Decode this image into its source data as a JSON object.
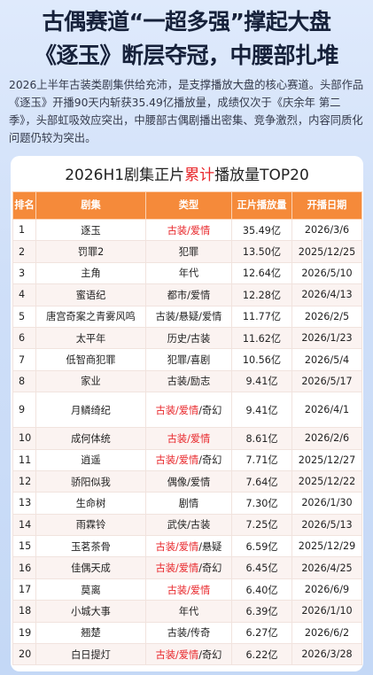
{
  "header": {
    "title_lines": [
      "古偶赛道“一超多强”撑起大盘",
      "《逐玉》断层夺冠，中腰部扎堆"
    ],
    "paragraph": "2026上半年古装类剧集供给充沛，是支撑播放大盘的核心赛道。头部作品《逐玉》开播90天内斩获35.49亿播放量，成绩仅次于《庆余年 第二季》，头部虹吸效应突出，中腰部古偶剧播出密集、竞争激烈，内容同质化问题仍较为突出。"
  },
  "table": {
    "title_parts": [
      {
        "text": "2026H1剧集正片"
      },
      {
        "text": "累计",
        "color": "#e8262a"
      },
      {
        "text": "播放量TOP20"
      }
    ],
    "columns": [
      "排名",
      "剧集",
      "类型",
      "正片播放量",
      "开播日期"
    ],
    "rows": [
      {
        "rank": 1,
        "name": "逐玉",
        "genre_parts": [
          {
            "text": "古装/爱情",
            "color": "#e8262a"
          }
        ],
        "plays": "35.49亿",
        "date": "2026/3/6"
      },
      {
        "rank": 2,
        "name": "罚罪2",
        "genre_parts": [
          {
            "text": "犯罪"
          }
        ],
        "plays": "13.50亿",
        "date": "2025/12/25"
      },
      {
        "rank": 3,
        "name": "主角",
        "genre_parts": [
          {
            "text": "年代"
          }
        ],
        "plays": "12.64亿",
        "date": "2026/5/10"
      },
      {
        "rank": 4,
        "name": "蜜语纪",
        "genre_parts": [
          {
            "text": "都市/爱情"
          }
        ],
        "plays": "12.28亿",
        "date": "2026/4/13"
      },
      {
        "rank": 5,
        "name": "唐宫奇案之青雾风鸣",
        "genre_parts": [
          {
            "text": "古装/悬疑/爱情"
          }
        ],
        "plays": "11.77亿",
        "date": "2026/2/5"
      },
      {
        "rank": 6,
        "name": "太平年",
        "genre_parts": [
          {
            "text": "历史/古装"
          }
        ],
        "plays": "11.62亿",
        "date": "2026/1/23"
      },
      {
        "rank": 7,
        "name": "低智商犯罪",
        "genre_parts": [
          {
            "text": "犯罪/喜剧"
          }
        ],
        "plays": "10.56亿",
        "date": "2026/5/4"
      },
      {
        "rank": 8,
        "name": "家业",
        "genre_parts": [
          {
            "text": "古装/励志"
          }
        ],
        "plays": "9.41亿",
        "date": "2026/5/17"
      },
      {
        "rank": 9,
        "name": "月鳞绮纪",
        "genre_parts": [
          {
            "text": "古装/爱情",
            "color": "#e8262a"
          },
          {
            "text": "/奇幻"
          }
        ],
        "plays": "9.41亿",
        "date": "2026/4/1"
      },
      {
        "rank": 10,
        "name": "成何体统",
        "genre_parts": [
          {
            "text": "古装/爱情",
            "color": "#e8262a"
          }
        ],
        "plays": "8.61亿",
        "date": "2026/2/6"
      },
      {
        "rank": 11,
        "name": "逍遥",
        "genre_parts": [
          {
            "text": "古装/爱情",
            "color": "#e8262a"
          },
          {
            "text": "/奇幻"
          }
        ],
        "plays": "7.71亿",
        "date": "2025/12/27"
      },
      {
        "rank": 12,
        "name": "骄阳似我",
        "genre_parts": [
          {
            "text": "偶像/爱情"
          }
        ],
        "plays": "7.64亿",
        "date": "2025/12/22"
      },
      {
        "rank": 13,
        "name": "生命树",
        "genre_parts": [
          {
            "text": "剧情"
          }
        ],
        "plays": "7.30亿",
        "date": "2026/1/30"
      },
      {
        "rank": 14,
        "name": "雨霖铃",
        "genre_parts": [
          {
            "text": "武侠/古装"
          }
        ],
        "plays": "7.25亿",
        "date": "2026/5/13"
      },
      {
        "rank": 15,
        "name": "玉茗茶骨",
        "genre_parts": [
          {
            "text": "古装/爱情",
            "color": "#e8262a"
          },
          {
            "text": "/悬疑"
          }
        ],
        "plays": "6.59亿",
        "date": "2025/12/29"
      },
      {
        "rank": 16,
        "name": "佳偶天成",
        "genre_parts": [
          {
            "text": "古装/爱情",
            "color": "#e8262a"
          },
          {
            "text": "/奇幻"
          }
        ],
        "plays": "6.45亿",
        "date": "2026/4/25"
      },
      {
        "rank": 17,
        "name": "莫离",
        "genre_parts": [
          {
            "text": "古装/爱情",
            "color": "#e8262a"
          }
        ],
        "plays": "6.40亿",
        "date": "2026/6/9"
      },
      {
        "rank": 18,
        "name": "小城大事",
        "genre_parts": [
          {
            "text": "年代"
          }
        ],
        "plays": "6.39亿",
        "date": "2026/1/10"
      },
      {
        "rank": 19,
        "name": "翘楚",
        "genre_parts": [
          {
            "text": "古装/传奇"
          }
        ],
        "plays": "6.27亿",
        "date": "2026/6/2"
      },
      {
        "rank": 20,
        "name": "白日提灯",
        "genre_parts": [
          {
            "text": "古装/爱情",
            "color": "#e8262a"
          },
          {
            "text": "/奇幻"
          }
        ],
        "plays": "6.22亿",
        "date": "2026/3/28"
      }
    ]
  }
}
